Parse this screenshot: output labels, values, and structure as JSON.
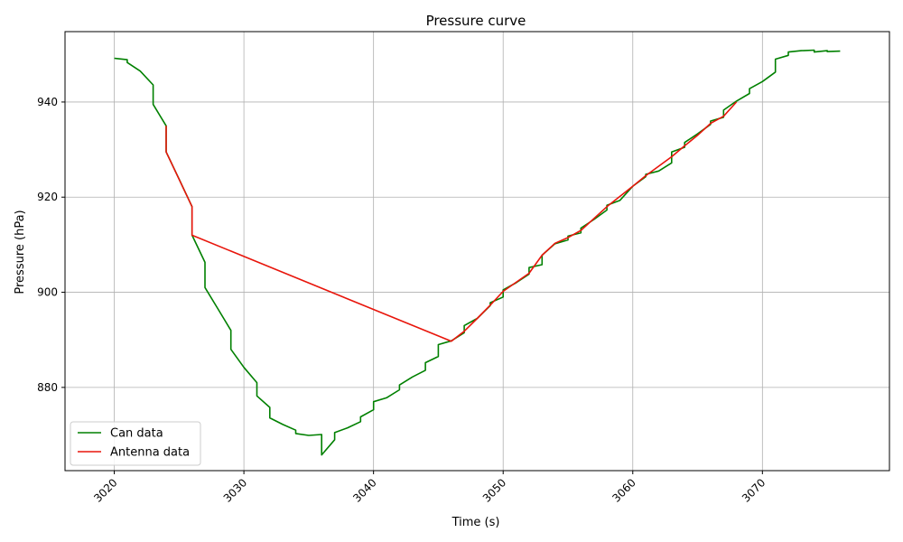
{
  "chart_data": {
    "type": "line",
    "title": "Pressure curve",
    "xlabel": "Time (s)",
    "ylabel": "Pressure (hPa)",
    "xlim": [
      3016.2,
      3079.8
    ],
    "ylim": [
      862.5,
      954.8
    ],
    "xticks": [
      3020,
      3030,
      3040,
      3050,
      3060,
      3070
    ],
    "yticks": [
      880,
      900,
      920,
      940
    ],
    "grid": true,
    "legend_position": "lower-left",
    "series": [
      {
        "name": "Can data",
        "color": "#008000",
        "points": [
          [
            3020,
            949.2
          ],
          [
            3021,
            948.9
          ],
          [
            3021,
            948.3
          ],
          [
            3022,
            946.5
          ],
          [
            3023,
            943.6
          ],
          [
            3023,
            939.5
          ],
          [
            3024,
            935
          ],
          [
            3024,
            929.5
          ],
          [
            3025,
            923.8
          ],
          [
            3026,
            918
          ],
          [
            3026,
            912
          ],
          [
            3027,
            906.3
          ],
          [
            3027,
            901
          ],
          [
            3028,
            896.5
          ],
          [
            3029,
            892
          ],
          [
            3029,
            888
          ],
          [
            3030,
            884.2
          ],
          [
            3031,
            881
          ],
          [
            3031,
            878.2
          ],
          [
            3032,
            875.8
          ],
          [
            3032,
            873.6
          ],
          [
            3033,
            872.2
          ],
          [
            3034,
            871
          ],
          [
            3034,
            870.3
          ],
          [
            3035,
            869.9
          ],
          [
            3036,
            870.1
          ],
          [
            3036,
            865.8
          ],
          [
            3037,
            869
          ],
          [
            3037,
            870.5
          ],
          [
            3038,
            871.5
          ],
          [
            3039,
            872.8
          ],
          [
            3039,
            873.8
          ],
          [
            3040,
            875.3
          ],
          [
            3040,
            877
          ],
          [
            3041,
            877.8
          ],
          [
            3042,
            879.5
          ],
          [
            3042,
            880.5
          ],
          [
            3043,
            882.2
          ],
          [
            3044,
            883.6
          ],
          [
            3044,
            885.2
          ],
          [
            3045,
            886.5
          ],
          [
            3045,
            889
          ],
          [
            3046,
            889.8
          ],
          [
            3047,
            891.5
          ],
          [
            3047,
            893
          ],
          [
            3048,
            894.5
          ],
          [
            3049,
            897.2
          ],
          [
            3049,
            897.8
          ],
          [
            3050,
            899
          ],
          [
            3050,
            900.5
          ],
          [
            3051,
            902
          ],
          [
            3052,
            903.8
          ],
          [
            3052,
            905.2
          ],
          [
            3053,
            905.8
          ],
          [
            3053,
            907.8
          ],
          [
            3054,
            910.2
          ],
          [
            3055,
            911
          ],
          [
            3055,
            911.8
          ],
          [
            3056,
            912.5
          ],
          [
            3056,
            913.5
          ],
          [
            3057,
            915.3
          ],
          [
            3058,
            917.3
          ],
          [
            3058,
            918.3
          ],
          [
            3059,
            919.3
          ],
          [
            3060,
            922.3
          ],
          [
            3061,
            924.3
          ],
          [
            3061,
            924.8
          ],
          [
            3062,
            925.5
          ],
          [
            3063,
            927.2
          ],
          [
            3063,
            929.5
          ],
          [
            3064,
            930.5
          ],
          [
            3064,
            931.5
          ],
          [
            3065,
            933.3
          ],
          [
            3066,
            935.3
          ],
          [
            3066,
            936
          ],
          [
            3067,
            936.8
          ],
          [
            3067,
            938.3
          ],
          [
            3068,
            940.2
          ],
          [
            3069,
            941.8
          ],
          [
            3069,
            942.8
          ],
          [
            3070,
            944.3
          ],
          [
            3071,
            946.3
          ],
          [
            3071,
            949
          ],
          [
            3072,
            949.8
          ],
          [
            3072,
            950.5
          ],
          [
            3073,
            950.8
          ],
          [
            3074,
            950.9
          ],
          [
            3074,
            950.5
          ],
          [
            3075,
            950.8
          ],
          [
            3075,
            950.6
          ],
          [
            3076,
            950.7
          ]
        ]
      },
      {
        "name": "Antenna data",
        "color": "#e8150b",
        "points": [
          [
            3024,
            935
          ],
          [
            3024,
            929.5
          ],
          [
            3026,
            918
          ],
          [
            3026,
            912
          ],
          [
            3046,
            889.7
          ],
          [
            3047,
            891.8
          ],
          [
            3048,
            894.5
          ],
          [
            3049,
            897.3
          ],
          [
            3050,
            900.2
          ],
          [
            3052,
            904
          ],
          [
            3053,
            907.8
          ],
          [
            3054,
            910.3
          ],
          [
            3055,
            911.5
          ],
          [
            3056,
            913
          ],
          [
            3058,
            918
          ],
          [
            3060,
            922.3
          ],
          [
            3061,
            924.5
          ],
          [
            3063,
            928.5
          ],
          [
            3064,
            930.8
          ],
          [
            3065,
            933
          ],
          [
            3066,
            935.5
          ],
          [
            3067,
            937
          ],
          [
            3068,
            940
          ]
        ]
      }
    ]
  }
}
